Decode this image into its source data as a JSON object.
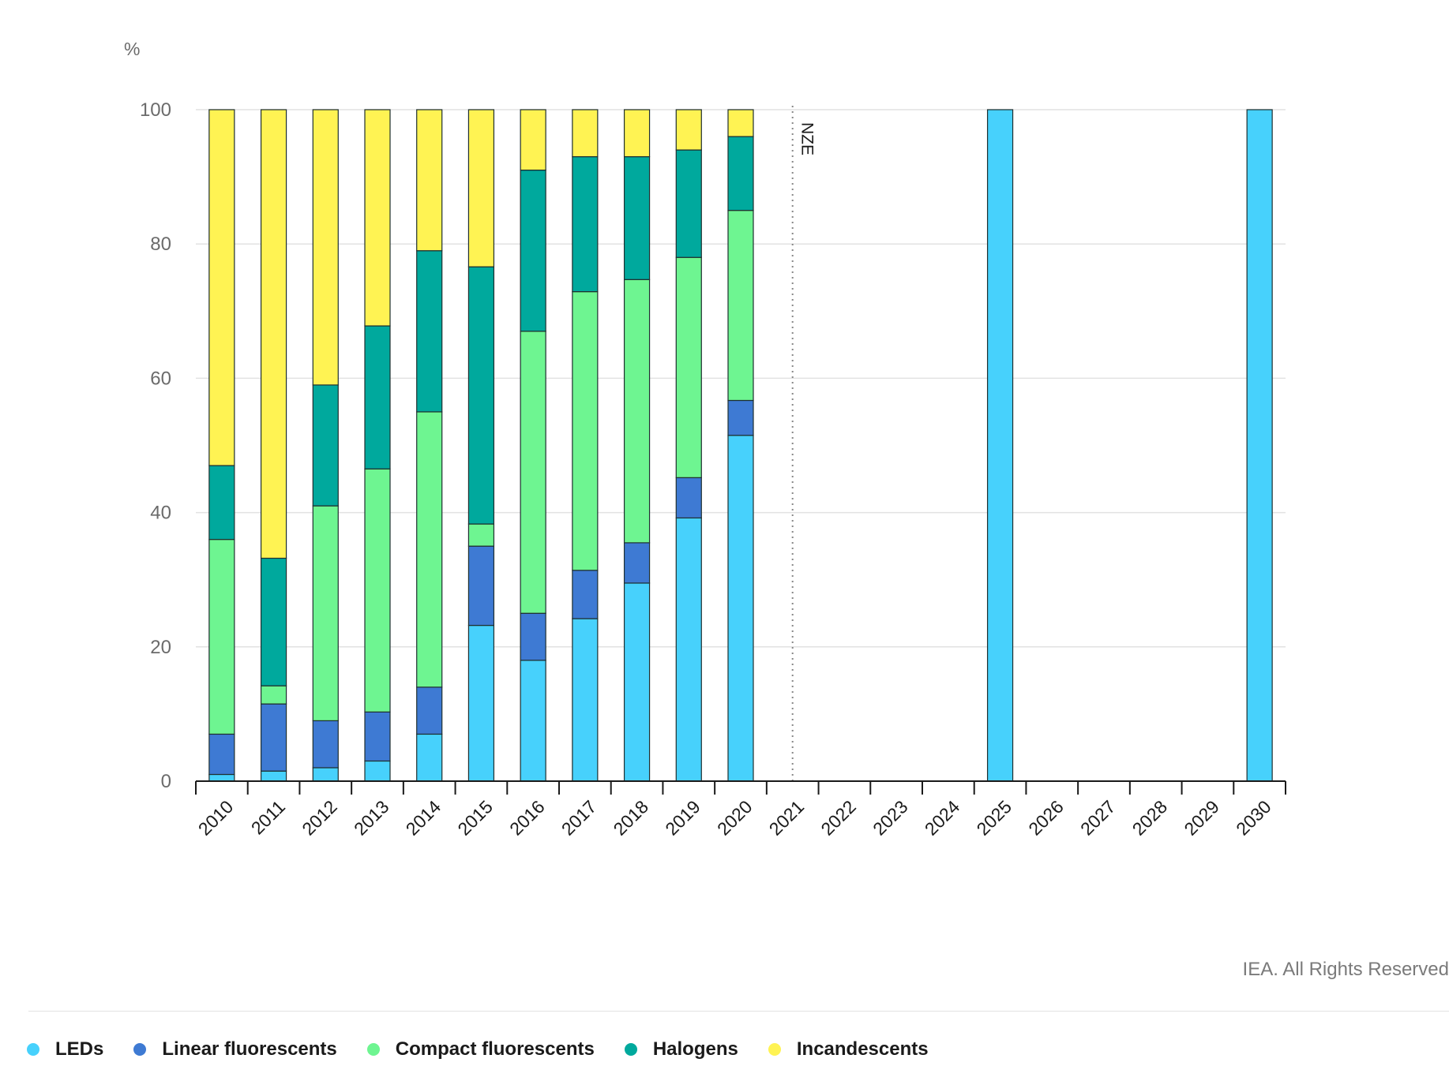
{
  "chart_data": {
    "type": "bar",
    "stacked": true,
    "unit_label": "%",
    "categories": [
      "2010",
      "2011",
      "2012",
      "2013",
      "2014",
      "2015",
      "2016",
      "2017",
      "2018",
      "2019",
      "2020",
      "2021",
      "2022",
      "2023",
      "2024",
      "2025",
      "2026",
      "2027",
      "2028",
      "2029",
      "2030"
    ],
    "series": [
      {
        "name": "LEDs",
        "color": "#47d1fc",
        "values": [
          1,
          1.5,
          2,
          3,
          7,
          23.2,
          18,
          24.2,
          29.5,
          39.2,
          51.5,
          null,
          null,
          null,
          null,
          100,
          null,
          null,
          null,
          null,
          100
        ]
      },
      {
        "name": "Linear fluorescents",
        "color": "#3e7ad3",
        "values": [
          6,
          10,
          7,
          7.3,
          7,
          11.8,
          7,
          7.2,
          6,
          6,
          5.2,
          null,
          null,
          null,
          null,
          0,
          null,
          null,
          null,
          null,
          0
        ]
      },
      {
        "name": "Compact fluorescents",
        "color": "#6ef591",
        "values": [
          29,
          2.7,
          32,
          36.2,
          41,
          3.3,
          42,
          41.5,
          39.2,
          32.8,
          28.3,
          null,
          null,
          null,
          null,
          0,
          null,
          null,
          null,
          null,
          0
        ]
      },
      {
        "name": "Halogens",
        "color": "#00a99d",
        "values": [
          11,
          19,
          18,
          21.3,
          24,
          38.3,
          24,
          20.1,
          18.3,
          16,
          11,
          null,
          null,
          null,
          null,
          0,
          null,
          null,
          null,
          null,
          0
        ]
      },
      {
        "name": "Incandescents",
        "color": "#fff353",
        "values": [
          53,
          66.8,
          41,
          32.2,
          21,
          23.4,
          9,
          7,
          7,
          6,
          4,
          null,
          null,
          null,
          null,
          0,
          null,
          null,
          null,
          null,
          0
        ]
      }
    ],
    "ylim": [
      0,
      100
    ],
    "yticks": [
      0,
      20,
      40,
      60,
      80,
      100
    ],
    "grid": true,
    "legend_position": "bottom-left",
    "annotations": [
      {
        "text": "NZE",
        "at_category": "2021"
      }
    ],
    "credit": "IEA. All Rights Reserved"
  }
}
